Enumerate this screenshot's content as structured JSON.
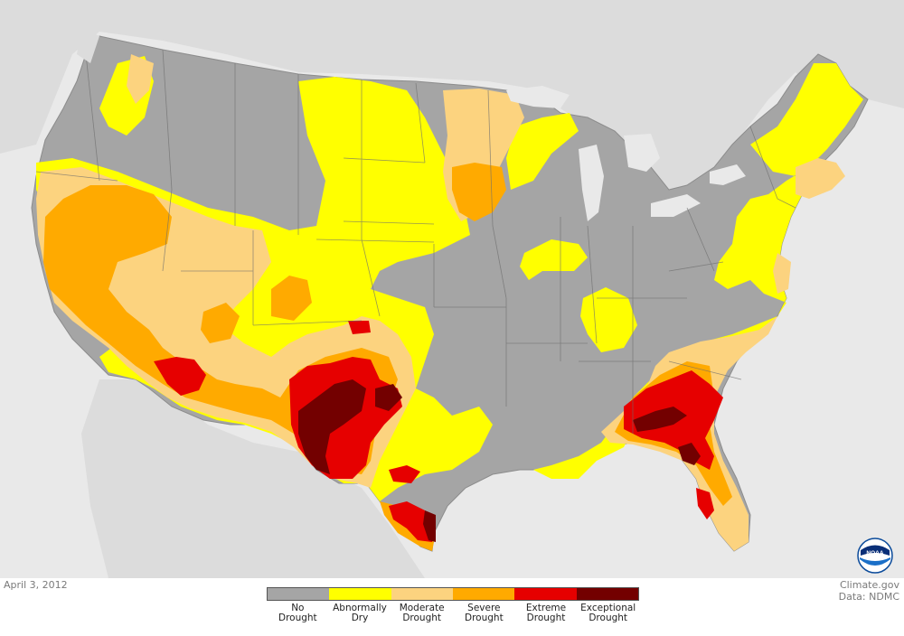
{
  "map": {
    "colors": {
      "no_drought": "#a5a5a5",
      "abnormally_dry": "#ffff00",
      "moderate": "#fcd37f",
      "severe": "#ffaa00",
      "extreme": "#e60000",
      "exceptional": "#730000",
      "background_land": "#dcdcdc",
      "water": "#e9e9e9"
    }
  },
  "date": "April 3, 2012",
  "credit": {
    "line1": "Climate.gov",
    "line2": "Data: NDMC"
  },
  "legend": {
    "items": [
      {
        "line1": "No",
        "line2": "Drought",
        "color": "#a5a5a5"
      },
      {
        "line1": "Abnormally",
        "line2": "Dry",
        "color": "#ffff00"
      },
      {
        "line1": "Moderate",
        "line2": "Drought",
        "color": "#fcd37f"
      },
      {
        "line1": "Severe",
        "line2": "Drought",
        "color": "#ffaa00"
      },
      {
        "line1": "Extreme",
        "line2": "Drought",
        "color": "#e60000"
      },
      {
        "line1": "Exceptional",
        "line2": "Drought",
        "color": "#730000"
      }
    ]
  },
  "logo": {
    "text": "NOAA"
  }
}
